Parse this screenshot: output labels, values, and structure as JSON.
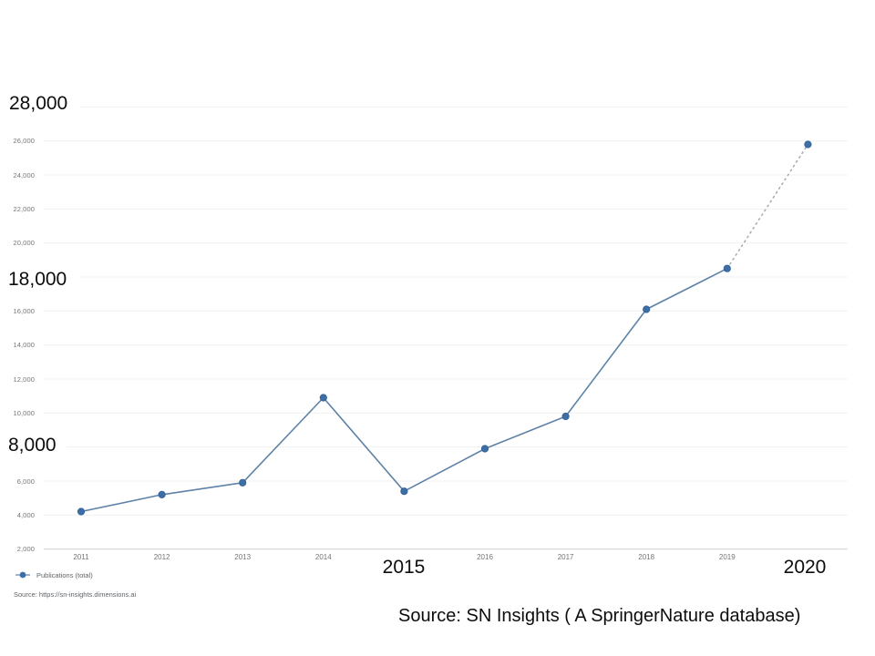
{
  "slide": {
    "overlays": {
      "y_top": "28,000",
      "y_mid": "18,000",
      "y_low": "8,000",
      "x_2015": "2015",
      "x_2020": "2020",
      "source_note": "Source: SN Insights ( A SpringerNature database)"
    }
  },
  "chart": {
    "legend_label": "Publications (total)",
    "source_caption": "Source: https://sn-insights.dimensions.ai"
  },
  "chart_data": {
    "type": "line",
    "title": "",
    "xlabel": "",
    "ylabel": "",
    "x": [
      "2011",
      "2012",
      "2013",
      "2014",
      "2015",
      "2016",
      "2017",
      "2018",
      "2019",
      "2020"
    ],
    "series": [
      {
        "name": "Publications (total)",
        "values": [
          4200,
          5200,
          5900,
          10900,
          5400,
          7900,
          9800,
          16100,
          18500,
          25800
        ]
      }
    ],
    "dotted_segment_indices": [
      8,
      9
    ],
    "ylim": [
      2000,
      28000
    ],
    "ytick_step": 2000,
    "ytick_labels": [
      "2,000",
      "4,000",
      "6,000",
      "8,000",
      "10,000",
      "12,000",
      "14,000",
      "16,000",
      "18,000",
      "20,000",
      "22,000",
      "24,000",
      "26,000",
      "28,000"
    ],
    "hidden_ytick_labels": [
      "8,000",
      "18,000",
      "28,000"
    ],
    "hidden_xtick_labels": [
      "2015",
      "2020"
    ],
    "grid": true,
    "legend_position": "bottom-left"
  },
  "colors": {
    "line": "#5e82a8",
    "point_fill": "#3d6fa6",
    "point_stroke": "#35639a",
    "dotted": "#a3a9b0",
    "gridline": "#f1f1f1",
    "axis_line": "#d9d9d9",
    "tick_text": "#757575",
    "caption_text": "#5f6368",
    "overlay_text": "#0d0d0d"
  }
}
